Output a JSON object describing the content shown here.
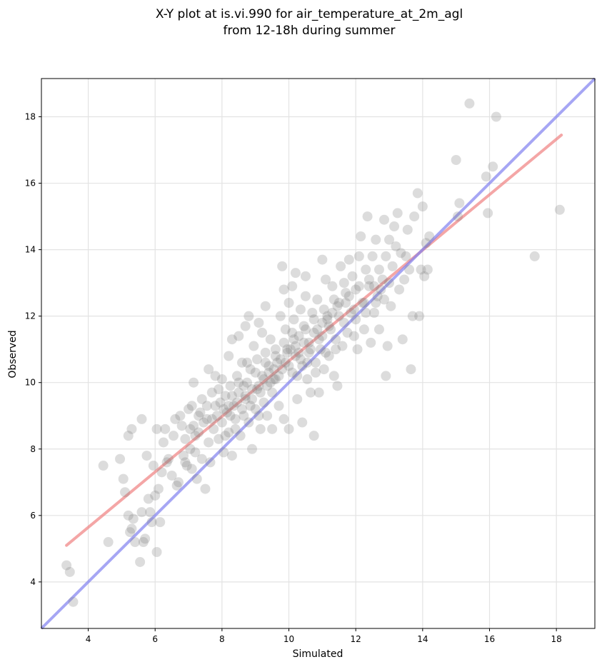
{
  "chart_data": {
    "type": "scatter",
    "title_line1": "X-Y plot at is.vi.990 for air_temperature_at_2m_agl",
    "title_line2": "from 12-18h during summer",
    "xlabel": "Simulated",
    "ylabel": "Observed",
    "xlim": [
      2.6,
      19.15
    ],
    "ylim": [
      2.6,
      19.15
    ],
    "xticks": [
      4,
      6,
      8,
      10,
      12,
      14,
      16,
      18
    ],
    "yticks": [
      4,
      6,
      8,
      10,
      12,
      14,
      16,
      18
    ],
    "grid": true,
    "point_color": "#808080",
    "fit_line": {
      "color": "#f08080",
      "x": [
        3.35,
        18.15
      ],
      "y": [
        5.1,
        17.45
      ]
    },
    "identity_line": {
      "color": "#8080f0",
      "x": [
        2.6,
        19.15
      ],
      "y": [
        2.6,
        19.15
      ]
    },
    "points": [
      [
        3.35,
        4.5
      ],
      [
        3.45,
        4.3
      ],
      [
        3.55,
        3.4
      ],
      [
        4.45,
        7.5
      ],
      [
        4.6,
        5.2
      ],
      [
        4.95,
        7.7
      ],
      [
        5.05,
        7.1
      ],
      [
        5.1,
        6.7
      ],
      [
        5.2,
        6.0
      ],
      [
        5.25,
        5.5
      ],
      [
        5.3,
        5.6
      ],
      [
        5.35,
        5.9
      ],
      [
        5.4,
        5.2
      ],
      [
        5.2,
        8.4
      ],
      [
        5.3,
        8.6
      ],
      [
        5.6,
        8.9
      ],
      [
        5.55,
        4.6
      ],
      [
        5.6,
        6.1
      ],
      [
        5.65,
        5.2
      ],
      [
        5.7,
        5.3
      ],
      [
        5.75,
        7.8
      ],
      [
        5.8,
        6.5
      ],
      [
        5.85,
        6.1
      ],
      [
        5.9,
        5.8
      ],
      [
        5.95,
        7.5
      ],
      [
        6.0,
        6.6
      ],
      [
        6.05,
        4.9
      ],
      [
        6.05,
        8.6
      ],
      [
        6.1,
        6.8
      ],
      [
        6.15,
        5.8
      ],
      [
        6.2,
        7.3
      ],
      [
        6.25,
        8.2
      ],
      [
        6.3,
        8.6
      ],
      [
        6.35,
        7.6
      ],
      [
        6.4,
        7.7
      ],
      [
        6.5,
        7.2
      ],
      [
        6.55,
        8.4
      ],
      [
        6.6,
        8.9
      ],
      [
        6.65,
        6.9
      ],
      [
        6.7,
        7.0
      ],
      [
        6.75,
        9.0
      ],
      [
        6.8,
        8.7
      ],
      [
        6.85,
        7.8
      ],
      [
        6.9,
        8.3
      ],
      [
        6.95,
        7.5
      ],
      [
        7.0,
        9.2
      ],
      [
        7.05,
        8.0
      ],
      [
        7.1,
        7.4
      ],
      [
        7.1,
        9.3
      ],
      [
        7.15,
        10.0
      ],
      [
        7.15,
        8.7
      ],
      [
        7.2,
        7.9
      ],
      [
        7.25,
        7.1
      ],
      [
        7.3,
        8.5
      ],
      [
        7.35,
        9.1
      ],
      [
        7.4,
        7.7
      ],
      [
        7.45,
        8.8
      ],
      [
        7.5,
        6.8
      ],
      [
        7.55,
        9.3
      ],
      [
        7.6,
        10.4
      ],
      [
        7.6,
        8.2
      ],
      [
        7.65,
        7.6
      ],
      [
        7.7,
        9.7
      ],
      [
        7.75,
        8.6
      ],
      [
        7.8,
        10.2
      ],
      [
        7.85,
        9.0
      ],
      [
        7.9,
        8.3
      ],
      [
        7.95,
        9.4
      ],
      [
        8.0,
        10.1
      ],
      [
        8.0,
        8.8
      ],
      [
        8.05,
        7.9
      ],
      [
        8.1,
        9.6
      ],
      [
        8.15,
        9.1
      ],
      [
        8.2,
        10.8
      ],
      [
        8.2,
        8.5
      ],
      [
        8.25,
        9.9
      ],
      [
        8.3,
        7.8
      ],
      [
        8.3,
        11.3
      ],
      [
        8.35,
        9.3
      ],
      [
        8.4,
        8.9
      ],
      [
        8.45,
        10.2
      ],
      [
        8.5,
        9.7
      ],
      [
        8.5,
        11.4
      ],
      [
        8.55,
        8.4
      ],
      [
        8.6,
        10.6
      ],
      [
        8.65,
        9.0
      ],
      [
        8.7,
        11.7
      ],
      [
        8.7,
        9.5
      ],
      [
        8.75,
        10.0
      ],
      [
        8.8,
        12.0
      ],
      [
        8.8,
        8.8
      ],
      [
        8.85,
        10.4
      ],
      [
        8.9,
        9.8
      ],
      [
        8.9,
        8.0
      ],
      [
        8.95,
        11.1
      ],
      [
        9.0,
        9.2
      ],
      [
        9.05,
        10.7
      ],
      [
        9.1,
        11.8
      ],
      [
        9.1,
        9.9
      ],
      [
        9.15,
        8.6
      ],
      [
        9.2,
        11.5
      ],
      [
        9.2,
        10.2
      ],
      [
        9.25,
        9.4
      ],
      [
        9.3,
        12.3
      ],
      [
        9.3,
        10.9
      ],
      [
        9.35,
        9.0
      ],
      [
        9.4,
        10.5
      ],
      [
        9.45,
        11.3
      ],
      [
        9.5,
        9.7
      ],
      [
        9.5,
        8.6
      ],
      [
        9.55,
        10.1
      ],
      [
        9.6,
        11.0
      ],
      [
        9.65,
        10.6
      ],
      [
        9.7,
        9.3
      ],
      [
        9.75,
        12.0
      ],
      [
        9.8,
        13.5
      ],
      [
        9.8,
        10.4
      ],
      [
        9.85,
        12.8
      ],
      [
        9.85,
        8.9
      ],
      [
        9.9,
        11.6
      ],
      [
        9.95,
        10.9
      ],
      [
        10.0,
        12.4
      ],
      [
        10.0,
        8.6
      ],
      [
        10.05,
        11.0
      ],
      [
        10.1,
        10.3
      ],
      [
        10.1,
        12.9
      ],
      [
        10.15,
        11.9
      ],
      [
        10.2,
        13.3
      ],
      [
        10.2,
        10.8
      ],
      [
        10.25,
        9.5
      ],
      [
        10.3,
        11.4
      ],
      [
        10.35,
        12.2
      ],
      [
        10.4,
        10.5
      ],
      [
        10.4,
        8.8
      ],
      [
        10.45,
        11.7
      ],
      [
        10.5,
        12.6
      ],
      [
        10.5,
        13.2
      ],
      [
        10.55,
        10.1
      ],
      [
        10.6,
        11.2
      ],
      [
        10.65,
        9.7
      ],
      [
        10.7,
        12.1
      ],
      [
        10.75,
        8.4
      ],
      [
        10.75,
        11.5
      ],
      [
        10.8,
        10.6
      ],
      [
        10.85,
        12.5
      ],
      [
        10.9,
        9.7
      ],
      [
        10.95,
        11.0
      ],
      [
        11.0,
        13.7
      ],
      [
        11.0,
        11.8
      ],
      [
        11.05,
        10.4
      ],
      [
        11.1,
        13.1
      ],
      [
        11.15,
        12.0
      ],
      [
        11.2,
        10.8
      ],
      [
        11.25,
        11.6
      ],
      [
        11.3,
        12.9
      ],
      [
        11.35,
        10.2
      ],
      [
        11.4,
        11.3
      ],
      [
        11.45,
        9.9
      ],
      [
        11.5,
        12.4
      ],
      [
        11.55,
        13.5
      ],
      [
        11.6,
        11.1
      ],
      [
        11.65,
        13.0
      ],
      [
        11.7,
        12.7
      ],
      [
        11.75,
        11.5
      ],
      [
        11.8,
        13.7
      ],
      [
        11.85,
        12.1
      ],
      [
        11.9,
        13.2
      ],
      [
        11.95,
        11.4
      ],
      [
        12.0,
        12.8
      ],
      [
        12.05,
        11.0
      ],
      [
        12.1,
        13.8
      ],
      [
        12.15,
        14.4
      ],
      [
        12.2,
        12.4
      ],
      [
        12.25,
        11.6
      ],
      [
        12.3,
        13.4
      ],
      [
        12.35,
        15.0
      ],
      [
        12.4,
        12.9
      ],
      [
        12.45,
        11.2
      ],
      [
        12.5,
        13.8
      ],
      [
        12.55,
        12.1
      ],
      [
        12.6,
        14.3
      ],
      [
        12.65,
        12.6
      ],
      [
        12.7,
        11.6
      ],
      [
        12.75,
        12.8
      ],
      [
        12.8,
        13.1
      ],
      [
        12.85,
        14.9
      ],
      [
        12.9,
        10.2
      ],
      [
        12.9,
        13.8
      ],
      [
        12.95,
        11.1
      ],
      [
        13.0,
        14.3
      ],
      [
        13.05,
        12.3
      ],
      [
        13.1,
        13.5
      ],
      [
        13.15,
        14.7
      ],
      [
        13.2,
        14.1
      ],
      [
        13.25,
        15.1
      ],
      [
        13.3,
        12.8
      ],
      [
        13.35,
        13.9
      ],
      [
        13.4,
        11.3
      ],
      [
        13.45,
        13.1
      ],
      [
        13.5,
        13.8
      ],
      [
        13.55,
        14.6
      ],
      [
        13.6,
        13.4
      ],
      [
        13.65,
        10.4
      ],
      [
        13.7,
        12.0
      ],
      [
        13.75,
        15.0
      ],
      [
        13.85,
        15.7
      ],
      [
        13.9,
        12.0
      ],
      [
        13.95,
        13.4
      ],
      [
        14.0,
        15.3
      ],
      [
        14.05,
        13.2
      ],
      [
        14.1,
        14.2
      ],
      [
        14.15,
        13.4
      ],
      [
        14.2,
        14.4
      ],
      [
        15.0,
        16.7
      ],
      [
        15.1,
        15.4
      ],
      [
        15.05,
        15.0
      ],
      [
        15.4,
        18.4
      ],
      [
        15.9,
        16.2
      ],
      [
        15.95,
        15.1
      ],
      [
        16.1,
        16.5
      ],
      [
        16.2,
        18.0
      ],
      [
        17.35,
        13.8
      ],
      [
        18.1,
        15.2
      ],
      [
        6.9,
        7.6
      ],
      [
        7.2,
        8.4
      ],
      [
        7.4,
        9.5
      ],
      [
        7.7,
        8.9
      ],
      [
        7.9,
        9.8
      ],
      [
        8.1,
        8.4
      ],
      [
        8.3,
        9.6
      ],
      [
        8.5,
        10.0
      ],
      [
        8.6,
        9.2
      ],
      [
        8.75,
        10.6
      ],
      [
        8.9,
        9.5
      ],
      [
        9.0,
        10.3
      ],
      [
        9.15,
        9.7
      ],
      [
        9.3,
        10.6
      ],
      [
        9.45,
        10.0
      ],
      [
        9.6,
        10.8
      ],
      [
        9.7,
        10.2
      ],
      [
        9.85,
        11.2
      ],
      [
        10.0,
        10.5
      ],
      [
        10.1,
        11.5
      ],
      [
        10.2,
        11.1
      ],
      [
        10.35,
        10.7
      ],
      [
        10.5,
        11.6
      ],
      [
        10.6,
        10.9
      ],
      [
        10.75,
        11.9
      ],
      [
        10.9,
        11.3
      ],
      [
        11.05,
        12.2
      ],
      [
        11.2,
        11.7
      ],
      [
        11.35,
        12.5
      ],
      [
        11.5,
        12.0
      ],
      [
        11.65,
        11.8
      ],
      [
        11.8,
        12.6
      ],
      [
        11.95,
        12.2
      ],
      [
        12.1,
        12.9
      ],
      [
        12.25,
        12.4
      ],
      [
        12.4,
        13.1
      ],
      [
        12.55,
        12.9
      ],
      [
        12.7,
        13.4
      ],
      [
        12.85,
        12.5
      ],
      [
        13.0,
        13.0
      ],
      [
        7.05,
        8.6
      ],
      [
        7.3,
        9.0
      ],
      [
        7.55,
        8.9
      ],
      [
        7.8,
        9.3
      ],
      [
        8.05,
        9.2
      ],
      [
        8.25,
        9.0
      ],
      [
        8.45,
        9.4
      ],
      [
        8.65,
        9.9
      ],
      [
        8.85,
        9.3
      ],
      [
        9.05,
        9.8
      ],
      [
        9.25,
        10.1
      ],
      [
        9.4,
        10.3
      ],
      [
        9.55,
        10.4
      ],
      [
        9.75,
        10.7
      ],
      [
        9.95,
        11.0
      ],
      [
        10.15,
        11.3
      ],
      [
        10.3,
        10.9
      ],
      [
        10.45,
        11.2
      ],
      [
        10.65,
        11.0
      ],
      [
        10.85,
        11.6
      ],
      [
        11.0,
        11.4
      ],
      [
        11.15,
        11.9
      ],
      [
        11.3,
        12.1
      ],
      [
        11.45,
        12.3
      ],
      [
        8.2,
        9.3
      ],
      [
        8.4,
        8.6
      ],
      [
        8.7,
        9.6
      ],
      [
        9.1,
        9.0
      ],
      [
        9.35,
        9.9
      ],
      [
        9.6,
        10.1
      ],
      [
        9.9,
        10.6
      ],
      [
        10.25,
        10.2
      ],
      [
        10.55,
        10.6
      ],
      [
        10.8,
        10.3
      ],
      [
        11.1,
        10.9
      ],
      [
        11.4,
        11.0
      ],
      [
        11.7,
        12.4
      ],
      [
        12.0,
        11.9
      ],
      [
        12.3,
        12.1
      ],
      [
        12.6,
        12.4
      ]
    ]
  }
}
